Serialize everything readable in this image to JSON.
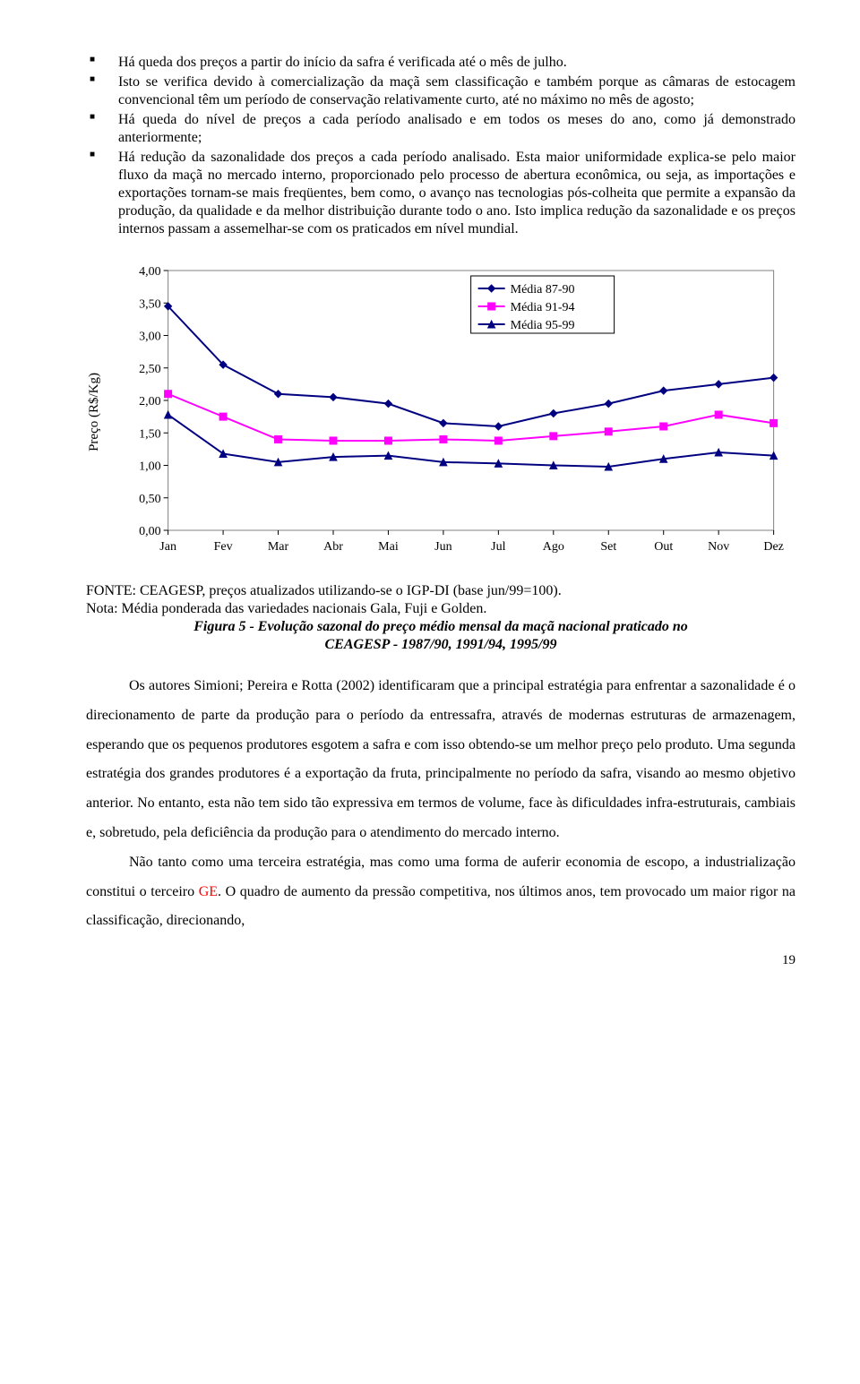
{
  "bullets": {
    "b1": "Há queda dos preços a partir do início da safra é verificada até o mês de julho.",
    "b2": "Isto se verifica devido à comercialização da maçã sem classificação e também porque as câmaras de estocagem convencional têm um período de conservação relativamente curto, até no máximo no mês de agosto;",
    "b3": "Há queda do nível de preços a cada período analisado e em todos os meses do ano, como já demonstrado anteriormente;",
    "b4_a": "Há redução da sazonalidade dos preços a cada período analisado. Esta maior uniformidade explica-se pelo maior fluxo da maçã no mercado interno, proporcionado pelo processo de abertura econômica, ou seja, as importações e exportações tornam-se mais freqüentes, bem como, o avanço nas tecnologias pós-colheita que permite a expansão da produção, da qualidade e da melhor distribuição durante todo o ano. Isto implica redução da sazonalidade e os preços internos passam a assemelhar-se com os praticados em nível mundial."
  },
  "chart": {
    "type": "line",
    "ylabel": "Preço (R$/Kg)",
    "categories": [
      "Jan",
      "Fev",
      "Mar",
      "Abr",
      "Mai",
      "Jun",
      "Jul",
      "Ago",
      "Set",
      "Out",
      "Nov",
      "Dez"
    ],
    "ylim": [
      0,
      4
    ],
    "ytick_step": 0.5,
    "yticks": [
      "0,00",
      "0,50",
      "1,00",
      "1,50",
      "2,00",
      "2,50",
      "3,00",
      "3,50",
      "4,00"
    ],
    "series": [
      {
        "name": "Média 87-90",
        "color": "#000080",
        "marker": "diamond",
        "values": [
          3.45,
          2.55,
          2.1,
          2.05,
          1.95,
          1.65,
          1.6,
          1.8,
          1.95,
          2.15,
          2.25,
          2.35
        ]
      },
      {
        "name": "Média 91-94",
        "color": "#ff00ff",
        "marker": "square",
        "values": [
          2.1,
          1.75,
          1.4,
          1.38,
          1.38,
          1.4,
          1.38,
          1.45,
          1.52,
          1.6,
          1.78,
          1.65
        ]
      },
      {
        "name": "Média 95-99",
        "color": "#000080",
        "marker": "triangle",
        "values": [
          1.78,
          1.18,
          1.05,
          1.13,
          1.15,
          1.05,
          1.03,
          1.0,
          0.98,
          1.1,
          1.2,
          1.15
        ]
      }
    ],
    "legend_box": {
      "border": "#000000",
      "bg": "#ffffff"
    },
    "plot": {
      "border_color": "#808080",
      "bg": "#ffffff",
      "marker_size": 8,
      "line_width": 2,
      "tick_font_size": 14,
      "legend_font_size": 14
    }
  },
  "caption": {
    "source": "FONTE: CEAGESP, preços atualizados utilizando-se o IGP-DI (base jun/99=100).",
    "note": "Nota: Média ponderada das variedades nacionais Gala, Fuji e Golden.",
    "fig_a": "Figura 5 - Evolução sazonal do preço médio mensal da maçã nacional praticado no",
    "fig_b": "CEAGESP - 1987/90, 1991/94, 1995/99"
  },
  "paras": {
    "p1": "Os autores Simioni; Pereira e Rotta (2002) identificaram que a principal estratégia para enfrentar a sazonalidade é o direcionamento de parte da produção para o período da entressafra, através de modernas estruturas de armazenagem, esperando que os pequenos produtores esgotem a safra e com isso obtendo-se um melhor preço pelo produto. Uma segunda estratégia dos grandes produtores é a exportação da fruta, principalmente no período da safra, visando ao mesmo objetivo anterior. No entanto, esta não tem sido tão expressiva em termos de volume, face às dificuldades infra-estruturais, cambiais e, sobretudo, pela deficiência da produção para o atendimento do mercado interno.",
    "p2_a": "Não tanto como uma terceira estratégia, mas como uma forma de auferir economia de escopo, a industrialização constitui o terceiro ",
    "p2_ge": "GE",
    "p2_b": ". O quadro de aumento da pressão competitiva, nos últimos anos, tem provocado um maior rigor na classificação, direcionando,"
  },
  "page_number": "19"
}
